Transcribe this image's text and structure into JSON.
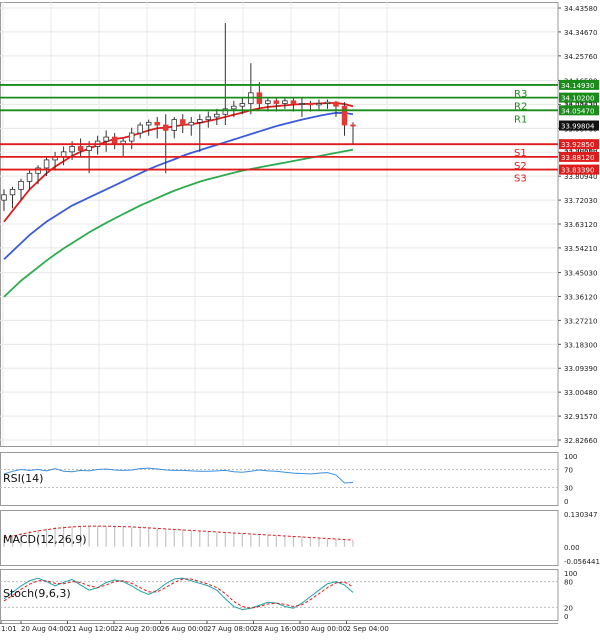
{
  "chart_data": [
    {
      "type": "candlestick",
      "title": "",
      "x_ticks": [
        "1:01",
        "20 Aug 04:00",
        "21 Aug 12:00",
        "22 Aug 20:00",
        "26 Aug 00:00",
        "27 Aug 08:00",
        "28 Aug 16:00",
        "30 Aug 00:00",
        "2 Sep 04:00"
      ],
      "y_ticks": [
        "34.43580",
        "34.34670",
        "34.25760",
        "34.16580",
        "34.07670",
        "33.98760",
        "33.89850",
        "33.80940",
        "33.72030",
        "33.63120",
        "33.54210",
        "33.45030",
        "33.36120",
        "33.27210",
        "33.18300",
        "33.09390",
        "33.00480",
        "32.91570",
        "32.82660"
      ],
      "ylim": [
        32.8266,
        34.4358
      ],
      "current_price": "33.99804",
      "levels": [
        {
          "name": "R3",
          "value": 34.1493,
          "label": "34.14930",
          "color": "#1a8c1a"
        },
        {
          "name": "R2",
          "value": 34.102,
          "label": "34.10200",
          "color": "#1a8c1a"
        },
        {
          "name": "R1",
          "value": 34.0547,
          "label": "34.05470",
          "color": "#1a8c1a"
        },
        {
          "name": "S1",
          "value": 33.9285,
          "label": "33.92850",
          "color": "#e01b1b"
        },
        {
          "name": "S2",
          "value": 33.8812,
          "label": "33.88120",
          "color": "#e01b1b"
        },
        {
          "name": "S3",
          "value": 33.8339,
          "label": "33.83390",
          "color": "#e01b1b"
        }
      ],
      "overlapped_labels": [
        "34.08250",
        "33.90860"
      ],
      "candles": [
        {
          "o": 33.72,
          "h": 33.76,
          "l": 33.68,
          "c": 33.74
        },
        {
          "o": 33.74,
          "h": 33.77,
          "l": 33.69,
          "c": 33.76
        },
        {
          "o": 33.76,
          "h": 33.8,
          "l": 33.72,
          "c": 33.79
        },
        {
          "o": 33.79,
          "h": 33.83,
          "l": 33.76,
          "c": 33.82
        },
        {
          "o": 33.82,
          "h": 33.85,
          "l": 33.78,
          "c": 33.84
        },
        {
          "o": 33.84,
          "h": 33.88,
          "l": 33.81,
          "c": 33.87
        },
        {
          "o": 33.87,
          "h": 33.9,
          "l": 33.83,
          "c": 33.88
        },
        {
          "o": 33.88,
          "h": 33.92,
          "l": 33.85,
          "c": 33.9
        },
        {
          "o": 33.9,
          "h": 33.94,
          "l": 33.87,
          "c": 33.92
        },
        {
          "o": 33.92,
          "h": 33.95,
          "l": 33.88,
          "c": 33.905
        },
        {
          "o": 33.905,
          "h": 33.94,
          "l": 33.82,
          "c": 33.92
        },
        {
          "o": 33.92,
          "h": 33.96,
          "l": 33.89,
          "c": 33.94
        },
        {
          "o": 33.94,
          "h": 33.98,
          "l": 33.9,
          "c": 33.955
        },
        {
          "o": 33.955,
          "h": 33.97,
          "l": 33.91,
          "c": 33.93
        },
        {
          "o": 33.93,
          "h": 33.95,
          "l": 33.88,
          "c": 33.94
        },
        {
          "o": 33.94,
          "h": 33.99,
          "l": 33.91,
          "c": 33.97
        },
        {
          "o": 33.97,
          "h": 34.01,
          "l": 33.95,
          "c": 34.0
        },
        {
          "o": 34.0,
          "h": 34.02,
          "l": 33.96,
          "c": 34.01
        },
        {
          "o": 34.01,
          "h": 34.03,
          "l": 33.95,
          "c": 34.0
        },
        {
          "o": 34.0,
          "h": 34.04,
          "l": 33.82,
          "c": 33.98
        },
        {
          "o": 33.98,
          "h": 34.03,
          "l": 33.95,
          "c": 34.02
        },
        {
          "o": 34.02,
          "h": 34.04,
          "l": 33.97,
          "c": 34.0
        },
        {
          "o": 34.0,
          "h": 34.03,
          "l": 33.96,
          "c": 34.01
        },
        {
          "o": 34.01,
          "h": 34.04,
          "l": 33.9,
          "c": 34.02
        },
        {
          "o": 34.02,
          "h": 34.05,
          "l": 33.99,
          "c": 34.03
        },
        {
          "o": 34.03,
          "h": 34.06,
          "l": 34.0,
          "c": 34.04
        },
        {
          "o": 34.04,
          "h": 34.38,
          "l": 34.0,
          "c": 34.06
        },
        {
          "o": 34.06,
          "h": 34.09,
          "l": 34.03,
          "c": 34.07
        },
        {
          "o": 34.07,
          "h": 34.1,
          "l": 34.04,
          "c": 34.08
        },
        {
          "o": 34.08,
          "h": 34.23,
          "l": 34.04,
          "c": 34.12
        },
        {
          "o": 34.12,
          "h": 34.16,
          "l": 34.06,
          "c": 34.08
        },
        {
          "o": 34.08,
          "h": 34.1,
          "l": 34.05,
          "c": 34.09
        },
        {
          "o": 34.09,
          "h": 34.1,
          "l": 34.05,
          "c": 34.08
        },
        {
          "o": 34.08,
          "h": 34.1,
          "l": 34.06,
          "c": 34.09
        },
        {
          "o": 34.09,
          "h": 34.1,
          "l": 34.05,
          "c": 34.08
        },
        {
          "o": 34.08,
          "h": 34.1,
          "l": 34.03,
          "c": 34.08
        },
        {
          "o": 34.08,
          "h": 34.09,
          "l": 34.05,
          "c": 34.075
        },
        {
          "o": 34.075,
          "h": 34.095,
          "l": 34.055,
          "c": 34.08
        },
        {
          "o": 34.08,
          "h": 34.095,
          "l": 34.06,
          "c": 34.085
        },
        {
          "o": 34.085,
          "h": 34.09,
          "l": 34.03,
          "c": 34.07
        },
        {
          "o": 34.07,
          "h": 34.085,
          "l": 33.96,
          "c": 34.0
        },
        {
          "o": 34.0,
          "h": 34.01,
          "l": 33.93,
          "c": 33.998
        }
      ],
      "ma_fast": [
        33.64,
        33.68,
        33.72,
        33.76,
        33.79,
        33.82,
        33.845,
        33.865,
        33.885,
        33.9,
        33.912,
        33.925,
        33.938,
        33.948,
        33.952,
        33.96,
        33.97,
        33.98,
        33.988,
        33.99,
        33.995,
        34.0,
        34.003,
        34.008,
        34.015,
        34.022,
        34.03,
        34.038,
        34.046,
        34.055,
        34.062,
        34.067,
        34.07,
        34.073,
        34.076,
        34.078,
        34.079,
        34.08,
        34.082,
        34.082,
        34.078,
        34.07
      ],
      "ma_mid": [
        33.5,
        33.53,
        33.56,
        33.59,
        33.615,
        33.64,
        33.66,
        33.68,
        33.7,
        33.715,
        33.73,
        33.745,
        33.76,
        33.775,
        33.79,
        33.805,
        33.82,
        33.835,
        33.848,
        33.86,
        33.872,
        33.885,
        33.896,
        33.906,
        33.916,
        33.926,
        33.936,
        33.946,
        33.956,
        33.966,
        33.976,
        33.986,
        33.996,
        34.004,
        34.012,
        34.02,
        34.027,
        34.034,
        34.04,
        34.045,
        34.045,
        34.04
      ],
      "ma_slow": [
        33.36,
        33.39,
        33.42,
        33.445,
        33.47,
        33.495,
        33.518,
        33.54,
        33.56,
        33.58,
        33.6,
        33.618,
        33.635,
        33.652,
        33.668,
        33.684,
        33.7,
        33.714,
        33.728,
        33.742,
        33.755,
        33.767,
        33.778,
        33.789,
        33.798,
        33.806,
        33.814,
        33.822,
        33.83,
        33.836,
        33.842,
        33.848,
        33.854,
        33.86,
        33.866,
        33.872,
        33.878,
        33.884,
        33.89,
        33.896,
        33.902,
        33.908
      ],
      "colors": {
        "up": "#2e7d32",
        "down": "#e53935",
        "ma_fast": "#e01b1b",
        "ma_mid": "#3a5bd9",
        "ma_slow": "#2eaa4f",
        "grid": "#e8e8e8"
      }
    },
    {
      "type": "line",
      "indicator": "RSI(14)",
      "y_ticks": [
        "100",
        "70",
        "30",
        "0"
      ],
      "ylim": [
        0,
        100
      ],
      "values": [
        60,
        66,
        70,
        68,
        70,
        67,
        72,
        66,
        65,
        68,
        67,
        70,
        71,
        69,
        68,
        69,
        72,
        73,
        71,
        69,
        68,
        68,
        67,
        66,
        66,
        67,
        68,
        65,
        64,
        66,
        69,
        67,
        66,
        64,
        62,
        61,
        60,
        62,
        63,
        58,
        40,
        41
      ],
      "color": "#3a8fe0"
    },
    {
      "type": "bar",
      "indicator": "MACD(12,26,9)",
      "y_ticks": [
        "0.130347",
        "0.00",
        "-0.056441"
      ],
      "ylim": [
        -0.056441,
        0.130347
      ],
      "values": [
        0.04,
        0.048,
        0.055,
        0.062,
        0.068,
        0.073,
        0.078,
        0.08,
        0.082,
        0.083,
        0.084,
        0.083,
        0.082,
        0.081,
        0.08,
        0.078,
        0.076,
        0.074,
        0.072,
        0.07,
        0.068,
        0.066,
        0.064,
        0.062,
        0.06,
        0.058,
        0.056,
        0.054,
        0.052,
        0.05,
        0.048,
        0.046,
        0.044,
        0.042,
        0.04,
        0.038,
        0.036,
        0.034,
        0.032,
        0.03,
        0.028,
        0.024
      ],
      "signal": [
        0.035,
        0.042,
        0.05,
        0.057,
        0.063,
        0.068,
        0.073,
        0.076,
        0.079,
        0.081,
        0.082,
        0.082,
        0.082,
        0.081,
        0.08,
        0.079,
        0.077,
        0.075,
        0.073,
        0.071,
        0.069,
        0.067,
        0.065,
        0.063,
        0.061,
        0.059,
        0.057,
        0.055,
        0.053,
        0.051,
        0.049,
        0.047,
        0.045,
        0.043,
        0.041,
        0.039,
        0.037,
        0.035,
        0.033,
        0.031,
        0.029,
        0.026
      ],
      "color": "#c4c4c4",
      "signal_color": "#e01b1b"
    },
    {
      "type": "line",
      "indicator": "Stoch(9,6,3)",
      "y_ticks": [
        "100",
        "80",
        "20",
        "0"
      ],
      "ylim": [
        0,
        100
      ],
      "k": [
        40,
        55,
        70,
        82,
        88,
        80,
        70,
        78,
        85,
        72,
        60,
        66,
        78,
        84,
        80,
        70,
        58,
        50,
        60,
        75,
        86,
        88,
        82,
        76,
        70,
        60,
        40,
        22,
        15,
        18,
        25,
        32,
        30,
        22,
        18,
        30,
        45,
        60,
        75,
        80,
        72,
        55
      ],
      "d": [
        35,
        48,
        62,
        74,
        82,
        82,
        76,
        75,
        80,
        78,
        70,
        66,
        72,
        80,
        82,
        76,
        66,
        56,
        56,
        66,
        78,
        86,
        86,
        80,
        74,
        66,
        52,
        34,
        22,
        18,
        22,
        28,
        30,
        27,
        22,
        26,
        38,
        52,
        66,
        77,
        79,
        68
      ],
      "k_color": "#1fa3a8",
      "d_color": "#e01b1b"
    }
  ]
}
